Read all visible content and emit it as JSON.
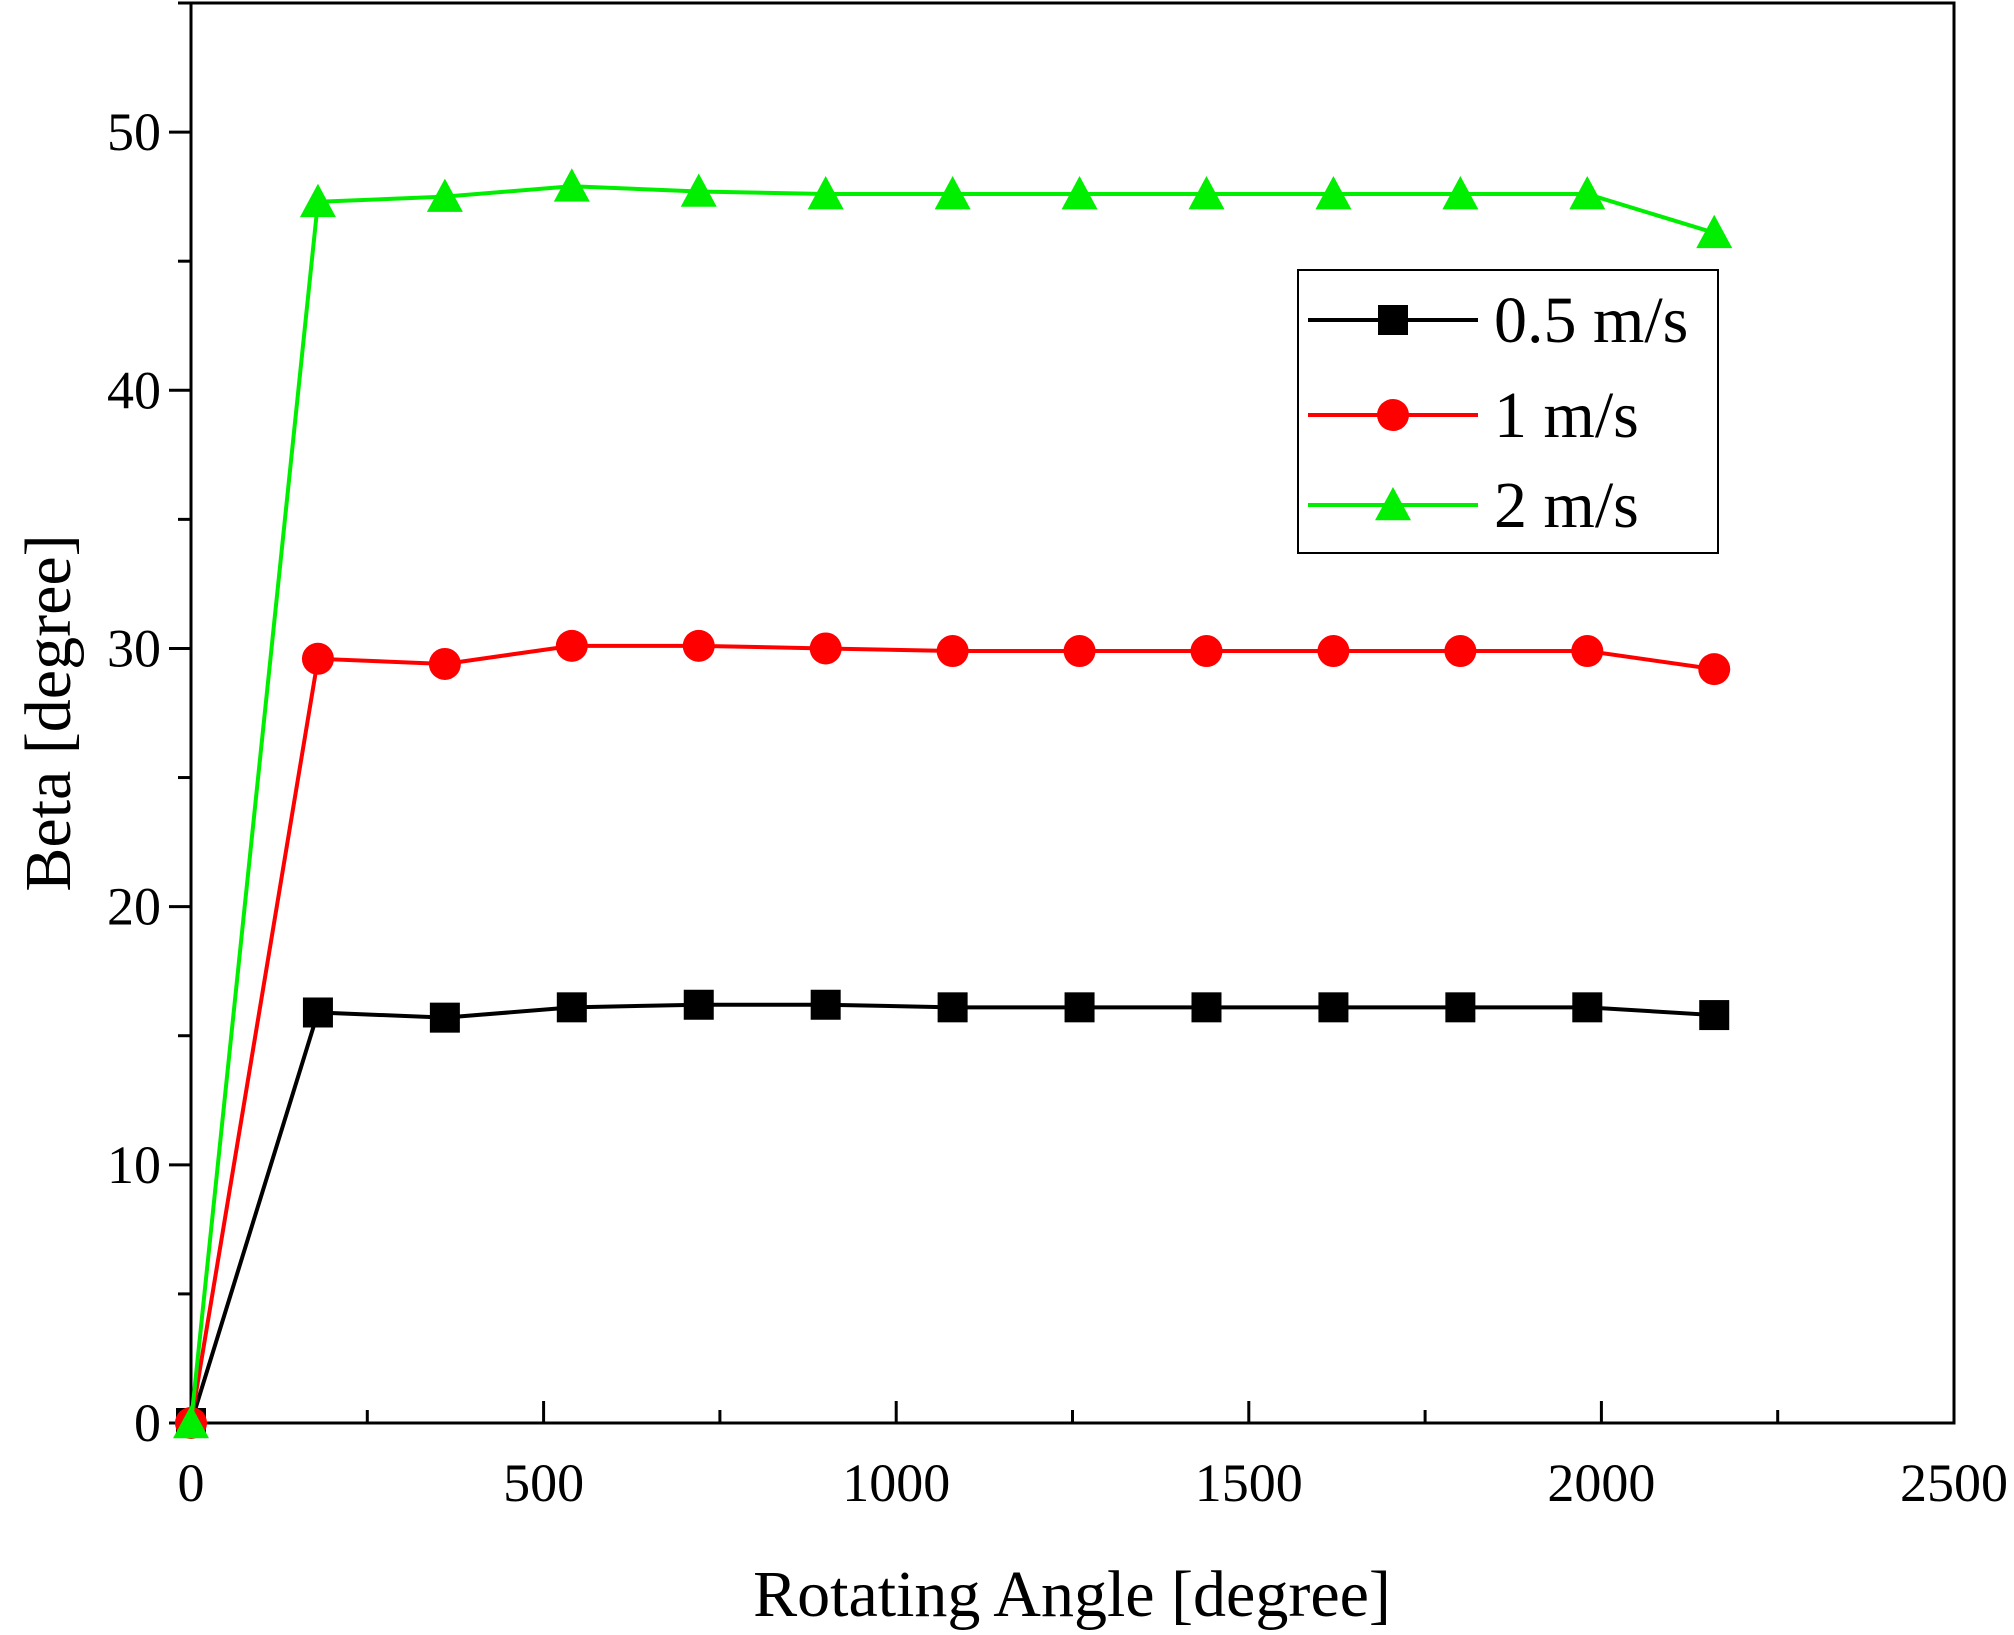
{
  "chart_data": {
    "type": "line",
    "title": "",
    "xlabel": "Rotating Angle [degree]",
    "ylabel": "Beta [degree]",
    "xlim": [
      0,
      2500
    ],
    "ylim": [
      0,
      55
    ],
    "xticks": [
      0,
      500,
      1000,
      1500,
      2000,
      2500
    ],
    "yticks": [
      0,
      10,
      20,
      30,
      40,
      50
    ],
    "x_minor_step": 250,
    "y_minor_step": 5,
    "grid": false,
    "legend_position": "top-right",
    "x": [
      0,
      180,
      360,
      540,
      720,
      900,
      1080,
      1260,
      1440,
      1620,
      1800,
      1980,
      2160
    ],
    "series": [
      {
        "name": "0.5 m/s",
        "color": "#000000",
        "marker": "square",
        "values": [
          0,
          15.9,
          15.7,
          16.1,
          16.2,
          16.2,
          16.1,
          16.1,
          16.1,
          16.1,
          16.1,
          16.1,
          15.8
        ]
      },
      {
        "name": "1 m/s",
        "color": "#ff0000",
        "marker": "circle",
        "values": [
          0,
          29.6,
          29.4,
          30.1,
          30.1,
          30.0,
          29.9,
          29.9,
          29.9,
          29.9,
          29.9,
          29.9,
          29.2
        ]
      },
      {
        "name": "2 m/s",
        "color": "#00ee00",
        "marker": "triangle",
        "values": [
          0,
          47.3,
          47.5,
          47.9,
          47.7,
          47.6,
          47.6,
          47.6,
          47.6,
          47.6,
          47.6,
          47.6,
          46.1
        ]
      }
    ]
  }
}
